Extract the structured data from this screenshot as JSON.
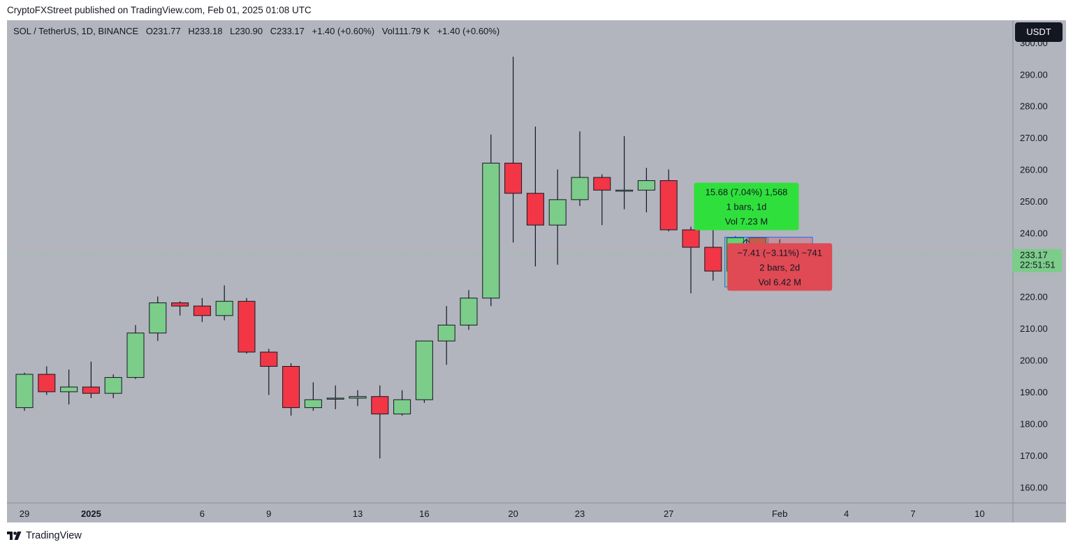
{
  "header": {
    "published_text": "CryptoFXStreet published on TradingView.com, Feb 01, 2025 01:08 UTC"
  },
  "legend": {
    "symbol": "SOL / TetherUS, 1D, BINANCE",
    "open": "O231.77",
    "high": "H233.18",
    "low": "L230.90",
    "close": "C233.17",
    "change": "+1.40 (+0.60%)",
    "volume": "Vol111.79 K",
    "vol_change": "+1.40 (+0.60%)"
  },
  "currency_button": "USDT",
  "price_badge": {
    "price": "233.17",
    "countdown": "22:51:51"
  },
  "footer": {
    "brand": "TradingView"
  },
  "colors": {
    "background": "#b2b5be",
    "up": "#7ccc8a",
    "down": "#f23645",
    "up_label": "#2fe03c",
    "down_label": "#df4a55",
    "axis_text": "#131722"
  },
  "chart_data": {
    "type": "candlestick",
    "interval": "1D",
    "ylim": [
      155,
      307
    ],
    "y_ticks": [
      300,
      290,
      280,
      270,
      260,
      250,
      240,
      230,
      220,
      210,
      200,
      190,
      180,
      170,
      160
    ],
    "y_tick_labels": [
      "300.00",
      "290.00",
      "280.00",
      "270.00",
      "260.00",
      "250.00",
      "240.00",
      "230.00",
      "220.00",
      "210.00",
      "200.00",
      "190.00",
      "180.00",
      "170.00",
      "160.00"
    ],
    "x_ticks": [
      {
        "label": "29",
        "index": 0,
        "bold": false
      },
      {
        "label": "2025",
        "index": 3,
        "bold": true
      },
      {
        "label": "6",
        "index": 8,
        "bold": false
      },
      {
        "label": "9",
        "index": 11,
        "bold": false
      },
      {
        "label": "13",
        "index": 15,
        "bold": false
      },
      {
        "label": "16",
        "index": 18,
        "bold": false
      },
      {
        "label": "20",
        "index": 22,
        "bold": false
      },
      {
        "label": "23",
        "index": 25,
        "bold": false
      },
      {
        "label": "27",
        "index": 29,
        "bold": false
      },
      {
        "label": "Feb",
        "index": 34,
        "bold": false
      },
      {
        "label": "4",
        "index": 37,
        "bold": false
      },
      {
        "label": "7",
        "index": 40,
        "bold": false
      },
      {
        "label": "10",
        "index": 43,
        "bold": false
      }
    ],
    "candles": [
      {
        "o": 185.0,
        "h": 196.0,
        "l": 184.0,
        "c": 195.5
      },
      {
        "o": 195.5,
        "h": 198.0,
        "l": 189.0,
        "c": 190.0
      },
      {
        "o": 190.0,
        "h": 197.0,
        "l": 186.0,
        "c": 191.5
      },
      {
        "o": 191.5,
        "h": 199.5,
        "l": 188.0,
        "c": 189.5
      },
      {
        "o": 189.5,
        "h": 195.5,
        "l": 188.0,
        "c": 194.5
      },
      {
        "o": 194.5,
        "h": 211.0,
        "l": 194.0,
        "c": 208.5
      },
      {
        "o": 208.5,
        "h": 220.0,
        "l": 206.0,
        "c": 218.0
      },
      {
        "o": 218.0,
        "h": 218.5,
        "l": 214.0,
        "c": 217.0
      },
      {
        "o": 217.0,
        "h": 219.5,
        "l": 212.0,
        "c": 214.0
      },
      {
        "o": 214.0,
        "h": 223.5,
        "l": 212.5,
        "c": 218.5
      },
      {
        "o": 218.5,
        "h": 219.5,
        "l": 202.0,
        "c": 202.5
      },
      {
        "o": 202.5,
        "h": 203.5,
        "l": 189.0,
        "c": 198.0
      },
      {
        "o": 198.0,
        "h": 199.0,
        "l": 182.5,
        "c": 185.0
      },
      {
        "o": 185.0,
        "h": 193.0,
        "l": 184.0,
        "c": 187.5
      },
      {
        "o": 188.0,
        "h": 192.0,
        "l": 184.5,
        "c": 188.0
      },
      {
        "o": 188.0,
        "h": 190.5,
        "l": 185.5,
        "c": 188.5
      },
      {
        "o": 188.5,
        "h": 192.0,
        "l": 169.0,
        "c": 183.0
      },
      {
        "o": 183.0,
        "h": 190.5,
        "l": 182.5,
        "c": 187.5
      },
      {
        "o": 187.5,
        "h": 206.0,
        "l": 186.5,
        "c": 206.0
      },
      {
        "o": 206.0,
        "h": 217.0,
        "l": 198.5,
        "c": 211.0
      },
      {
        "o": 211.0,
        "h": 222.0,
        "l": 209.5,
        "c": 219.5
      },
      {
        "o": 219.5,
        "h": 271.0,
        "l": 217.0,
        "c": 262.0
      },
      {
        "o": 262.0,
        "h": 295.5,
        "l": 237.0,
        "c": 252.5
      },
      {
        "o": 252.5,
        "h": 273.5,
        "l": 229.5,
        "c": 242.5
      },
      {
        "o": 242.5,
        "h": 260.0,
        "l": 230.0,
        "c": 250.5
      },
      {
        "o": 250.5,
        "h": 272.0,
        "l": 248.5,
        "c": 257.5
      },
      {
        "o": 257.5,
        "h": 258.5,
        "l": 242.5,
        "c": 253.5
      },
      {
        "o": 253.5,
        "h": 270.5,
        "l": 247.5,
        "c": 253.5
      },
      {
        "o": 253.5,
        "h": 260.5,
        "l": 246.5,
        "c": 256.5
      },
      {
        "o": 256.5,
        "h": 260.0,
        "l": 240.5,
        "c": 241.0
      },
      {
        "o": 241.0,
        "h": 242.0,
        "l": 221.0,
        "c": 235.5
      },
      {
        "o": 235.5,
        "h": 244.0,
        "l": 225.0,
        "c": 228.0
      },
      {
        "o": 228.0,
        "h": 239.0,
        "l": 226.5,
        "c": 238.5
      },
      {
        "o": 238.5,
        "h": 238.5,
        "l": 229.0,
        "c": 232.0
      },
      {
        "o": 231.77,
        "h": 233.18,
        "l": 230.9,
        "c": 233.17
      }
    ],
    "measurements": [
      {
        "from_index": 32,
        "to_index": 33,
        "low": 223.0,
        "high": 238.68,
        "direction": "up",
        "label_line1": "15.68 (7.04%) 1,568",
        "label_line2": "1 bars, 1d",
        "label_line3": "Vol 7.23 M"
      },
      {
        "from_index": 33,
        "to_index": 35,
        "low": 231.27,
        "high": 238.68,
        "direction": "down",
        "label_line1": "−7.41 (−3.11%) −741",
        "label_line2": "2 bars, 2d",
        "label_line3": "Vol 6.42 M"
      }
    ],
    "last_price": 233.17
  }
}
